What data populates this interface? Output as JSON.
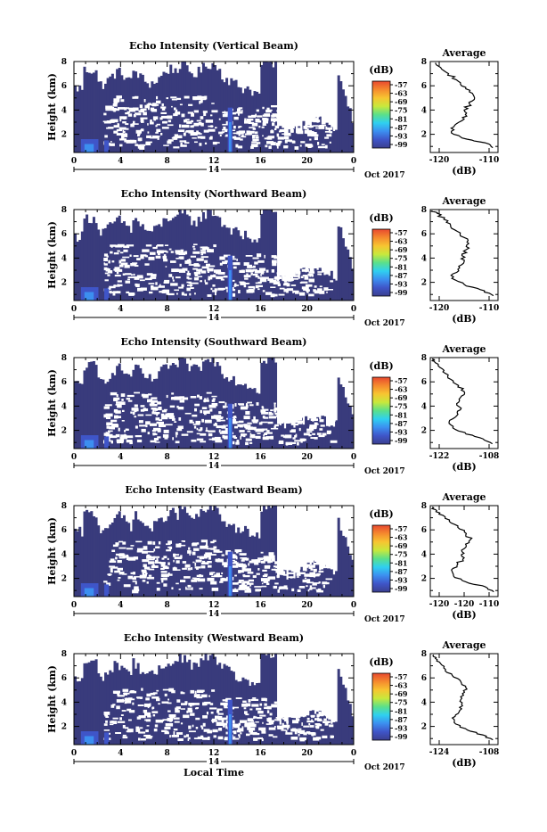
{
  "figure": {
    "xlabel": "Local Time",
    "date_label": "Oct 2017",
    "colorbar_unit": "(dB)",
    "colorbar_ticks": [
      "-57",
      "-63",
      "-69",
      "-75",
      "-81",
      "-87",
      "-93",
      "-99"
    ],
    "colormap": [
      "#3b3f8f",
      "#3f55c8",
      "#3c8ff0",
      "#2fd0f0",
      "#5be08a",
      "#c8e83c",
      "#f7c531",
      "#f58a2e",
      "#e8492f"
    ],
    "background_fill": "#393b7c"
  },
  "chart_data": [
    {
      "type": "heatmap",
      "title": "Echo Intensity (Vertical Beam)",
      "ylabel": "Height (km)",
      "xlabel": "Local Time",
      "x_ticks": [
        "0",
        "4",
        "8",
        "12",
        "16",
        "20",
        "0"
      ],
      "y_ticks": [
        "2",
        "4",
        "6",
        "8"
      ],
      "day_label": "14",
      "date_label": "Oct 2017",
      "xlim": [
        0,
        24
      ],
      "ylim": [
        0.5,
        8
      ],
      "colorbar": {
        "unit": "(dB)",
        "ticks": [
          "-57",
          "-63",
          "-69",
          "-75",
          "-81",
          "-87",
          "-93",
          "-99"
        ]
      },
      "profile": {
        "title": "Average",
        "xlabel": "(dB)",
        "x_ticks": [
          "-120",
          "-110"
        ],
        "y_ticks": [
          "2",
          "4",
          "6",
          "8"
        ],
        "xlim": [
          -121,
          -108
        ],
        "ylim": [
          0.5,
          8
        ],
        "points": [
          [
            -109,
            0.9
          ],
          [
            -110.5,
            1.3
          ],
          [
            -114,
            1.6
          ],
          [
            -116.5,
            2.0
          ],
          [
            -117,
            2.5
          ],
          [
            -115.5,
            3.0
          ],
          [
            -114,
            3.5
          ],
          [
            -114.5,
            4.0
          ],
          [
            -113.5,
            4.5
          ],
          [
            -112.5,
            5.0
          ],
          [
            -113.5,
            5.5
          ],
          [
            -115,
            6.0
          ],
          [
            -116,
            6.5
          ],
          [
            -117.5,
            7.0
          ],
          [
            -119,
            7.5
          ],
          [
            -120,
            7.9
          ]
        ]
      }
    },
    {
      "type": "heatmap",
      "title": "Echo Intensity (Northward Beam)",
      "ylabel": "Height (km)",
      "xlabel": "Local Time",
      "x_ticks": [
        "0",
        "4",
        "8",
        "12",
        "16",
        "20",
        "0"
      ],
      "y_ticks": [
        "2",
        "4",
        "6",
        "8"
      ],
      "day_label": "14",
      "date_label": "Oct 2017",
      "xlim": [
        0,
        24
      ],
      "ylim": [
        0.5,
        8
      ],
      "colorbar": {
        "unit": "(dB)",
        "ticks": [
          "-57",
          "-63",
          "-69",
          "-75",
          "-81",
          "-87",
          "-93",
          "-99"
        ]
      },
      "profile": {
        "title": "Average",
        "xlabel": "(dB)",
        "x_ticks": [
          "-120",
          "-110"
        ],
        "y_ticks": [
          "2",
          "4",
          "6",
          "8"
        ],
        "xlim": [
          -123,
          -108
        ],
        "ylim": [
          0.5,
          8
        ],
        "points": [
          [
            -109,
            0.9
          ],
          [
            -111,
            1.3
          ],
          [
            -115,
            1.7
          ],
          [
            -117.5,
            2.2
          ],
          [
            -118,
            2.7
          ],
          [
            -116.5,
            3.2
          ],
          [
            -115.5,
            3.7
          ],
          [
            -116,
            4.2
          ],
          [
            -115,
            4.7
          ],
          [
            -114.5,
            5.2
          ],
          [
            -115.5,
            5.7
          ],
          [
            -117,
            6.2
          ],
          [
            -118.5,
            6.7
          ],
          [
            -120,
            7.2
          ],
          [
            -121.5,
            7.7
          ],
          [
            -122.5,
            7.9
          ]
        ]
      }
    },
    {
      "type": "heatmap",
      "title": "Echo Intensity (Southward Beam)",
      "ylabel": "Height (km)",
      "xlabel": "Local Time",
      "x_ticks": [
        "0",
        "4",
        "8",
        "12",
        "16",
        "20",
        "0"
      ],
      "y_ticks": [
        "2",
        "4",
        "6",
        "8"
      ],
      "day_label": "14",
      "date_label": "Oct 2017",
      "xlim": [
        0,
        24
      ],
      "ylim": [
        0.5,
        8
      ],
      "colorbar": {
        "unit": "(dB)",
        "ticks": [
          "-57",
          "-63",
          "-69",
          "-75",
          "-81",
          "-87",
          "-93",
          "-99"
        ]
      },
      "profile": {
        "title": "Average",
        "xlabel": "(dB)",
        "x_ticks": [
          "-122",
          "-108"
        ],
        "y_ticks": [
          "2",
          "4",
          "6",
          "8"
        ],
        "xlim": [
          -124,
          -106
        ],
        "ylim": [
          0.5,
          8
        ],
        "points": [
          [
            -107.5,
            0.9
          ],
          [
            -110,
            1.3
          ],
          [
            -114.5,
            1.7
          ],
          [
            -118,
            2.2
          ],
          [
            -119,
            2.7
          ],
          [
            -117,
            3.2
          ],
          [
            -116,
            3.7
          ],
          [
            -117,
            4.2
          ],
          [
            -116,
            4.7
          ],
          [
            -115,
            5.2
          ],
          [
            -116.5,
            5.7
          ],
          [
            -118.5,
            6.2
          ],
          [
            -120,
            6.7
          ],
          [
            -121.5,
            7.2
          ],
          [
            -123,
            7.7
          ],
          [
            -123.5,
            7.9
          ]
        ]
      }
    },
    {
      "type": "heatmap",
      "title": "Echo Intensity (Eastward Beam)",
      "ylabel": "Height (km)",
      "xlabel": "Local Time",
      "x_ticks": [
        "0",
        "4",
        "8",
        "12",
        "16",
        "20",
        "0"
      ],
      "y_ticks": [
        "2",
        "4",
        "6",
        "8"
      ],
      "day_label": "14",
      "date_label": "Oct 2017",
      "xlim": [
        0,
        24
      ],
      "ylim": [
        0.5,
        8
      ],
      "colorbar": {
        "unit": "(dB)",
        "ticks": [
          "-57",
          "-63",
          "-69",
          "-75",
          "-81",
          "-87",
          "-93",
          "-99"
        ]
      },
      "profile": {
        "title": "Average",
        "xlabel": "(dB)",
        "x_ticks": [
          "-120",
          "-120",
          "-110"
        ],
        "y_ticks": [
          "2",
          "4",
          "6",
          "8"
        ],
        "xlim": [
          -124,
          -108
        ],
        "ylim": [
          0.5,
          8
        ],
        "points": [
          [
            -109,
            0.9
          ],
          [
            -111,
            1.3
          ],
          [
            -115.5,
            1.7
          ],
          [
            -118.5,
            2.2
          ],
          [
            -119,
            2.7
          ],
          [
            -117.5,
            3.2
          ],
          [
            -116,
            3.7
          ],
          [
            -116.5,
            4.2
          ],
          [
            -115.5,
            4.7
          ],
          [
            -114.5,
            5.2
          ],
          [
            -115.5,
            5.7
          ],
          [
            -117.5,
            6.2
          ],
          [
            -119.5,
            6.7
          ],
          [
            -121,
            7.2
          ],
          [
            -122.5,
            7.6
          ],
          [
            -123.5,
            7.9
          ]
        ]
      }
    },
    {
      "type": "heatmap",
      "title": "Echo Intensity (Westward Beam)",
      "ylabel": "Height (km)",
      "xlabel": "Local Time",
      "x_ticks": [
        "0",
        "4",
        "8",
        "12",
        "16",
        "20",
        "0"
      ],
      "y_ticks": [
        "2",
        "4",
        "6",
        "8"
      ],
      "day_label": "14",
      "date_label": "Oct 2017",
      "xlim": [
        0,
        24
      ],
      "ylim": [
        0.5,
        8
      ],
      "colorbar": {
        "unit": "(dB)",
        "ticks": [
          "-57",
          "-63",
          "-69",
          "-75",
          "-81",
          "-87",
          "-93",
          "-99"
        ]
      },
      "profile": {
        "title": "Average",
        "xlabel": "(dB)",
        "x_ticks": [
          "-124",
          "-108"
        ],
        "y_ticks": [
          "2",
          "4",
          "6",
          "8"
        ],
        "xlim": [
          -126,
          -106
        ],
        "ylim": [
          0.5,
          8
        ],
        "points": [
          [
            -107.5,
            0.9
          ],
          [
            -110.5,
            1.3
          ],
          [
            -115,
            1.7
          ],
          [
            -118.5,
            2.2
          ],
          [
            -119.5,
            2.7
          ],
          [
            -117.5,
            3.2
          ],
          [
            -116.5,
            3.7
          ],
          [
            -117,
            4.2
          ],
          [
            -116.5,
            4.7
          ],
          [
            -115.5,
            5.2
          ],
          [
            -117,
            5.7
          ],
          [
            -119.5,
            6.2
          ],
          [
            -121.5,
            6.7
          ],
          [
            -123,
            7.2
          ],
          [
            -124.5,
            7.6
          ],
          [
            -125,
            7.9
          ]
        ]
      }
    }
  ]
}
